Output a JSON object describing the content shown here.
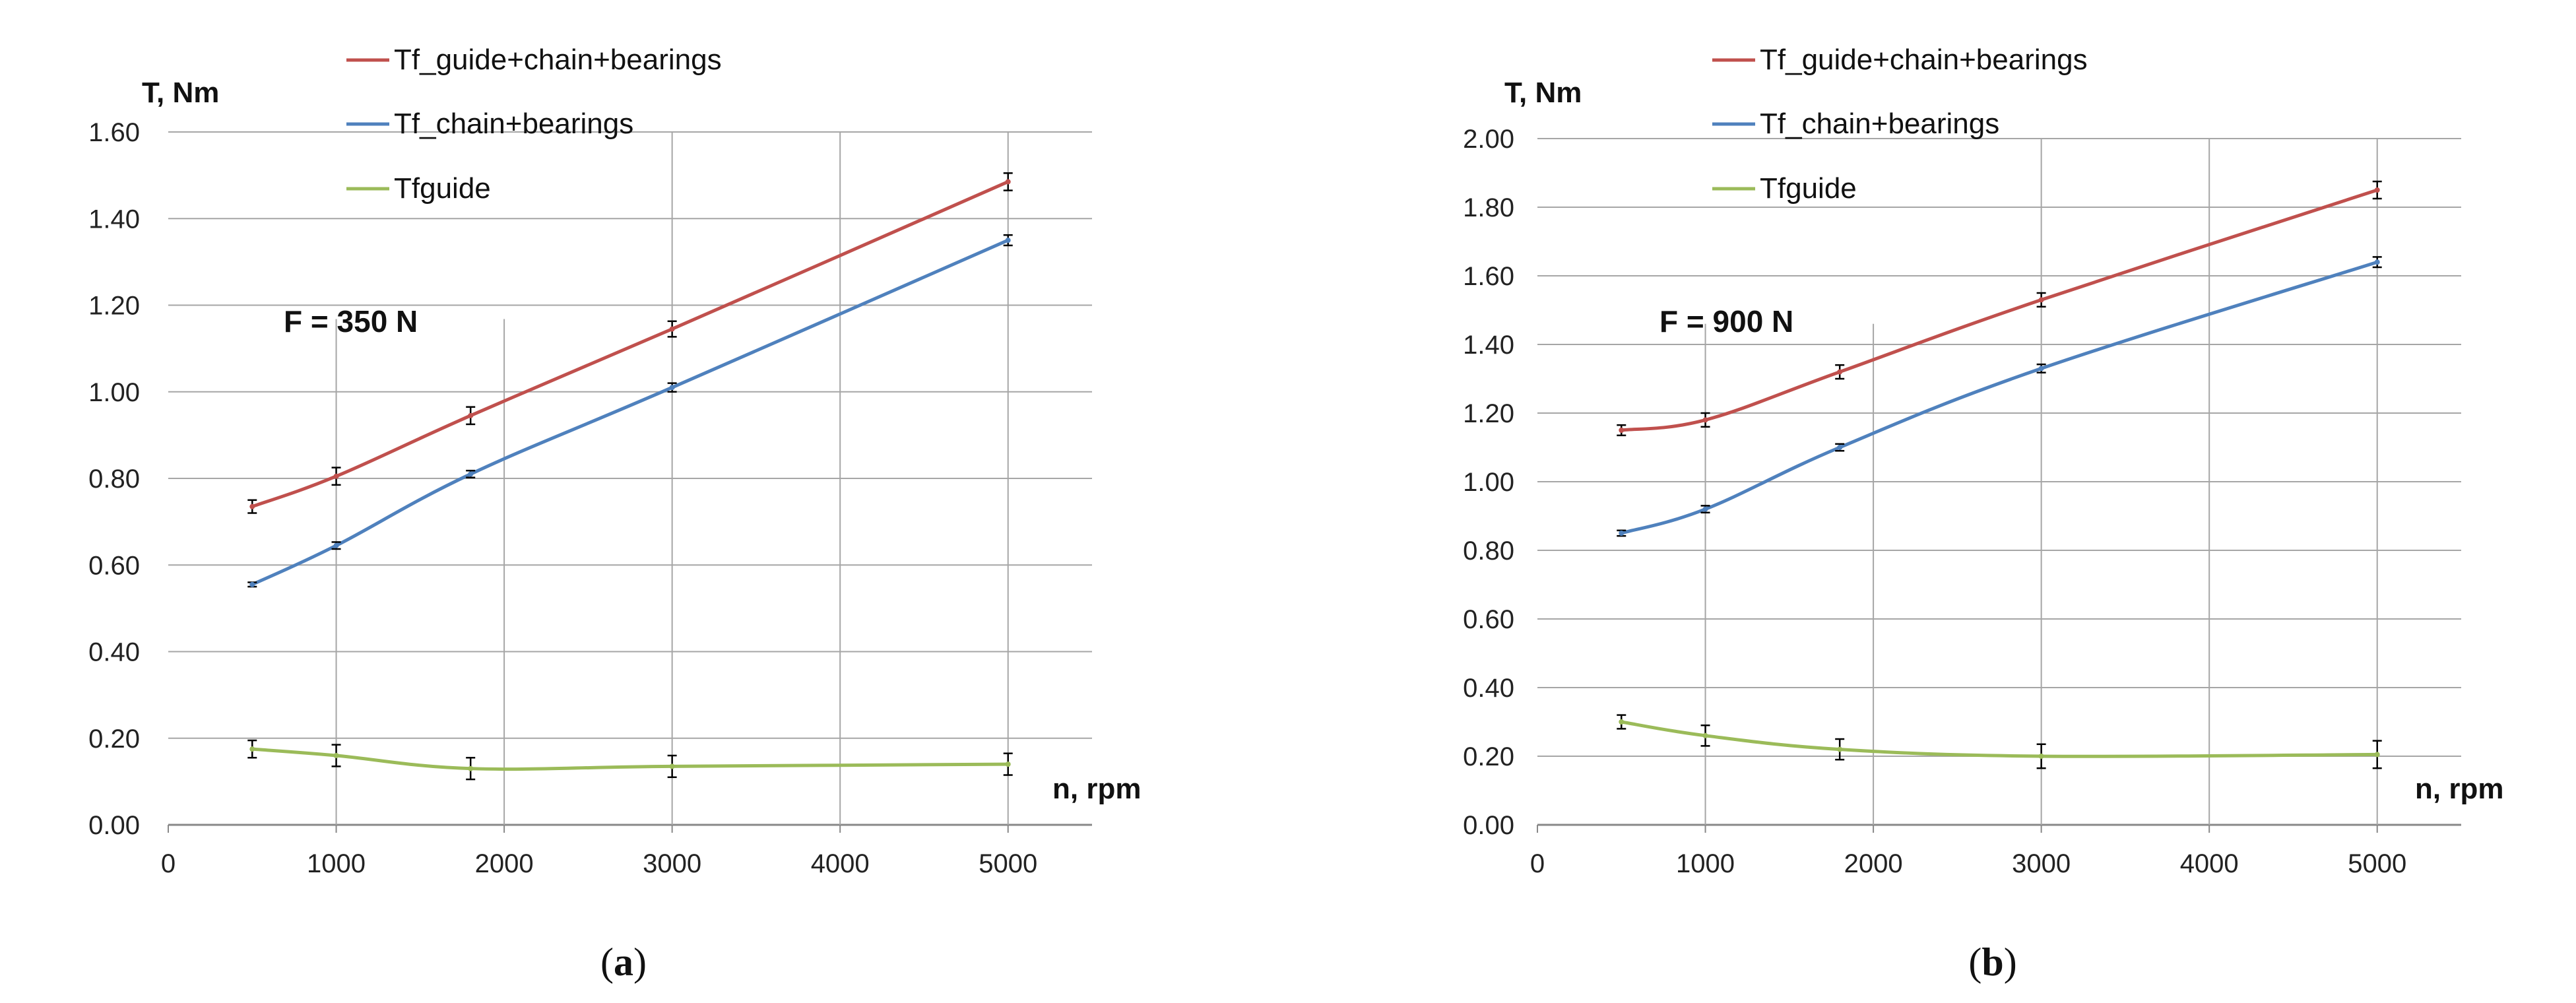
{
  "chart_data": [
    {
      "type": "line",
      "caption": "a",
      "annotation": "F = 350 N",
      "ylabel": "T, Nm",
      "xlabel": "n, rpm",
      "xlim": [
        0,
        5500
      ],
      "ylim": [
        0,
        1.6
      ],
      "xticks": [
        "0",
        "1000",
        "2000",
        "3000",
        "4000",
        "5000"
      ],
      "yticks": [
        "0.00",
        "0.20",
        "0.40",
        "0.60",
        "0.80",
        "1.00",
        "1.20",
        "1.40",
        "1.60"
      ],
      "series": [
        {
          "name": "Tf_guide+chain+bearings",
          "color": "#c0504d",
          "x": [
            500,
            1000,
            1800,
            3000,
            5000
          ],
          "y": [
            0.735,
            0.805,
            0.945,
            1.145,
            1.485
          ],
          "err": [
            0.015,
            0.02,
            0.02,
            0.018,
            0.02
          ]
        },
        {
          "name": "Tf_chain+bearings",
          "color": "#4f81bd",
          "x": [
            500,
            1000,
            1800,
            3000,
            5000
          ],
          "y": [
            0.555,
            0.645,
            0.81,
            1.01,
            1.35
          ],
          "err": [
            0.005,
            0.008,
            0.008,
            0.01,
            0.012
          ]
        },
        {
          "name": "Tfguide",
          "color": "#9bbb59",
          "x": [
            500,
            1000,
            1800,
            3000,
            5000
          ],
          "y": [
            0.175,
            0.16,
            0.13,
            0.135,
            0.14
          ],
          "err": [
            0.02,
            0.025,
            0.025,
            0.025,
            0.025
          ]
        }
      ]
    },
    {
      "type": "line",
      "caption": "b",
      "annotation": "F = 900 N",
      "ylabel": "T, Nm",
      "xlabel": "n, rpm",
      "xlim": [
        0,
        5500
      ],
      "ylim": [
        0,
        2.0
      ],
      "xticks": [
        "0",
        "1000",
        "2000",
        "3000",
        "4000",
        "5000"
      ],
      "yticks": [
        "0.00",
        "0.20",
        "0.40",
        "0.60",
        "0.80",
        "1.00",
        "1.20",
        "1.40",
        "1.60",
        "1.80",
        "2.00"
      ],
      "series": [
        {
          "name": "Tf_guide+chain+bearings",
          "color": "#c0504d",
          "x": [
            500,
            1000,
            1800,
            3000,
            5000
          ],
          "y": [
            1.15,
            1.18,
            1.32,
            1.53,
            1.85
          ],
          "err": [
            0.015,
            0.02,
            0.02,
            0.02,
            0.025
          ]
        },
        {
          "name": "Tf_chain+bearings",
          "color": "#4f81bd",
          "x": [
            500,
            1000,
            1800,
            3000,
            5000
          ],
          "y": [
            0.85,
            0.92,
            1.1,
            1.33,
            1.64
          ],
          "err": [
            0.008,
            0.01,
            0.01,
            0.012,
            0.015
          ]
        },
        {
          "name": "Tfguide",
          "color": "#9bbb59",
          "x": [
            500,
            1000,
            1800,
            3000,
            5000
          ],
          "y": [
            0.3,
            0.26,
            0.22,
            0.2,
            0.205
          ],
          "err": [
            0.02,
            0.03,
            0.03,
            0.035,
            0.04
          ]
        }
      ]
    }
  ]
}
